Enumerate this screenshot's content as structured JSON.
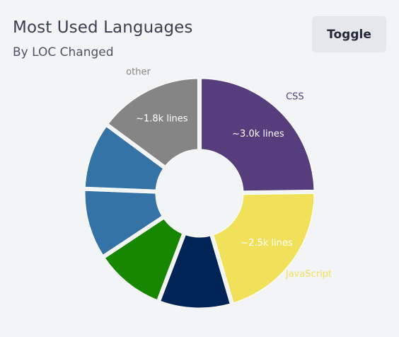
{
  "header": {
    "title": "Most Used Languages",
    "subtitle": "By LOC Changed",
    "toggle_label": "Toggle"
  },
  "chart_data": {
    "type": "pie",
    "donut": true,
    "title": "Most Used Languages",
    "subtitle": "By LOC Changed",
    "categories": [
      "CSS",
      "JavaScript",
      "",
      "",
      "",
      "",
      "other"
    ],
    "values": [
      3000,
      2500,
      1250,
      1200,
      1200,
      1150,
      1800
    ],
    "colors": [
      "#563d7c",
      "#f1e05a",
      "#012456",
      "#178600",
      "#3572a5",
      "#3572a5",
      "#858585"
    ],
    "inside_labels": [
      "~3.0k lines",
      "~2.5k lines",
      "",
      "",
      "",
      "",
      "~1.8k lines"
    ],
    "outside_labels": [
      "CSS",
      "JavaScript",
      "",
      "",
      "",
      "",
      "other"
    ],
    "outside_label_colors": [
      "#563d7c",
      "#f1e05a",
      "",
      "",
      "",
      "",
      "#858585"
    ]
  }
}
